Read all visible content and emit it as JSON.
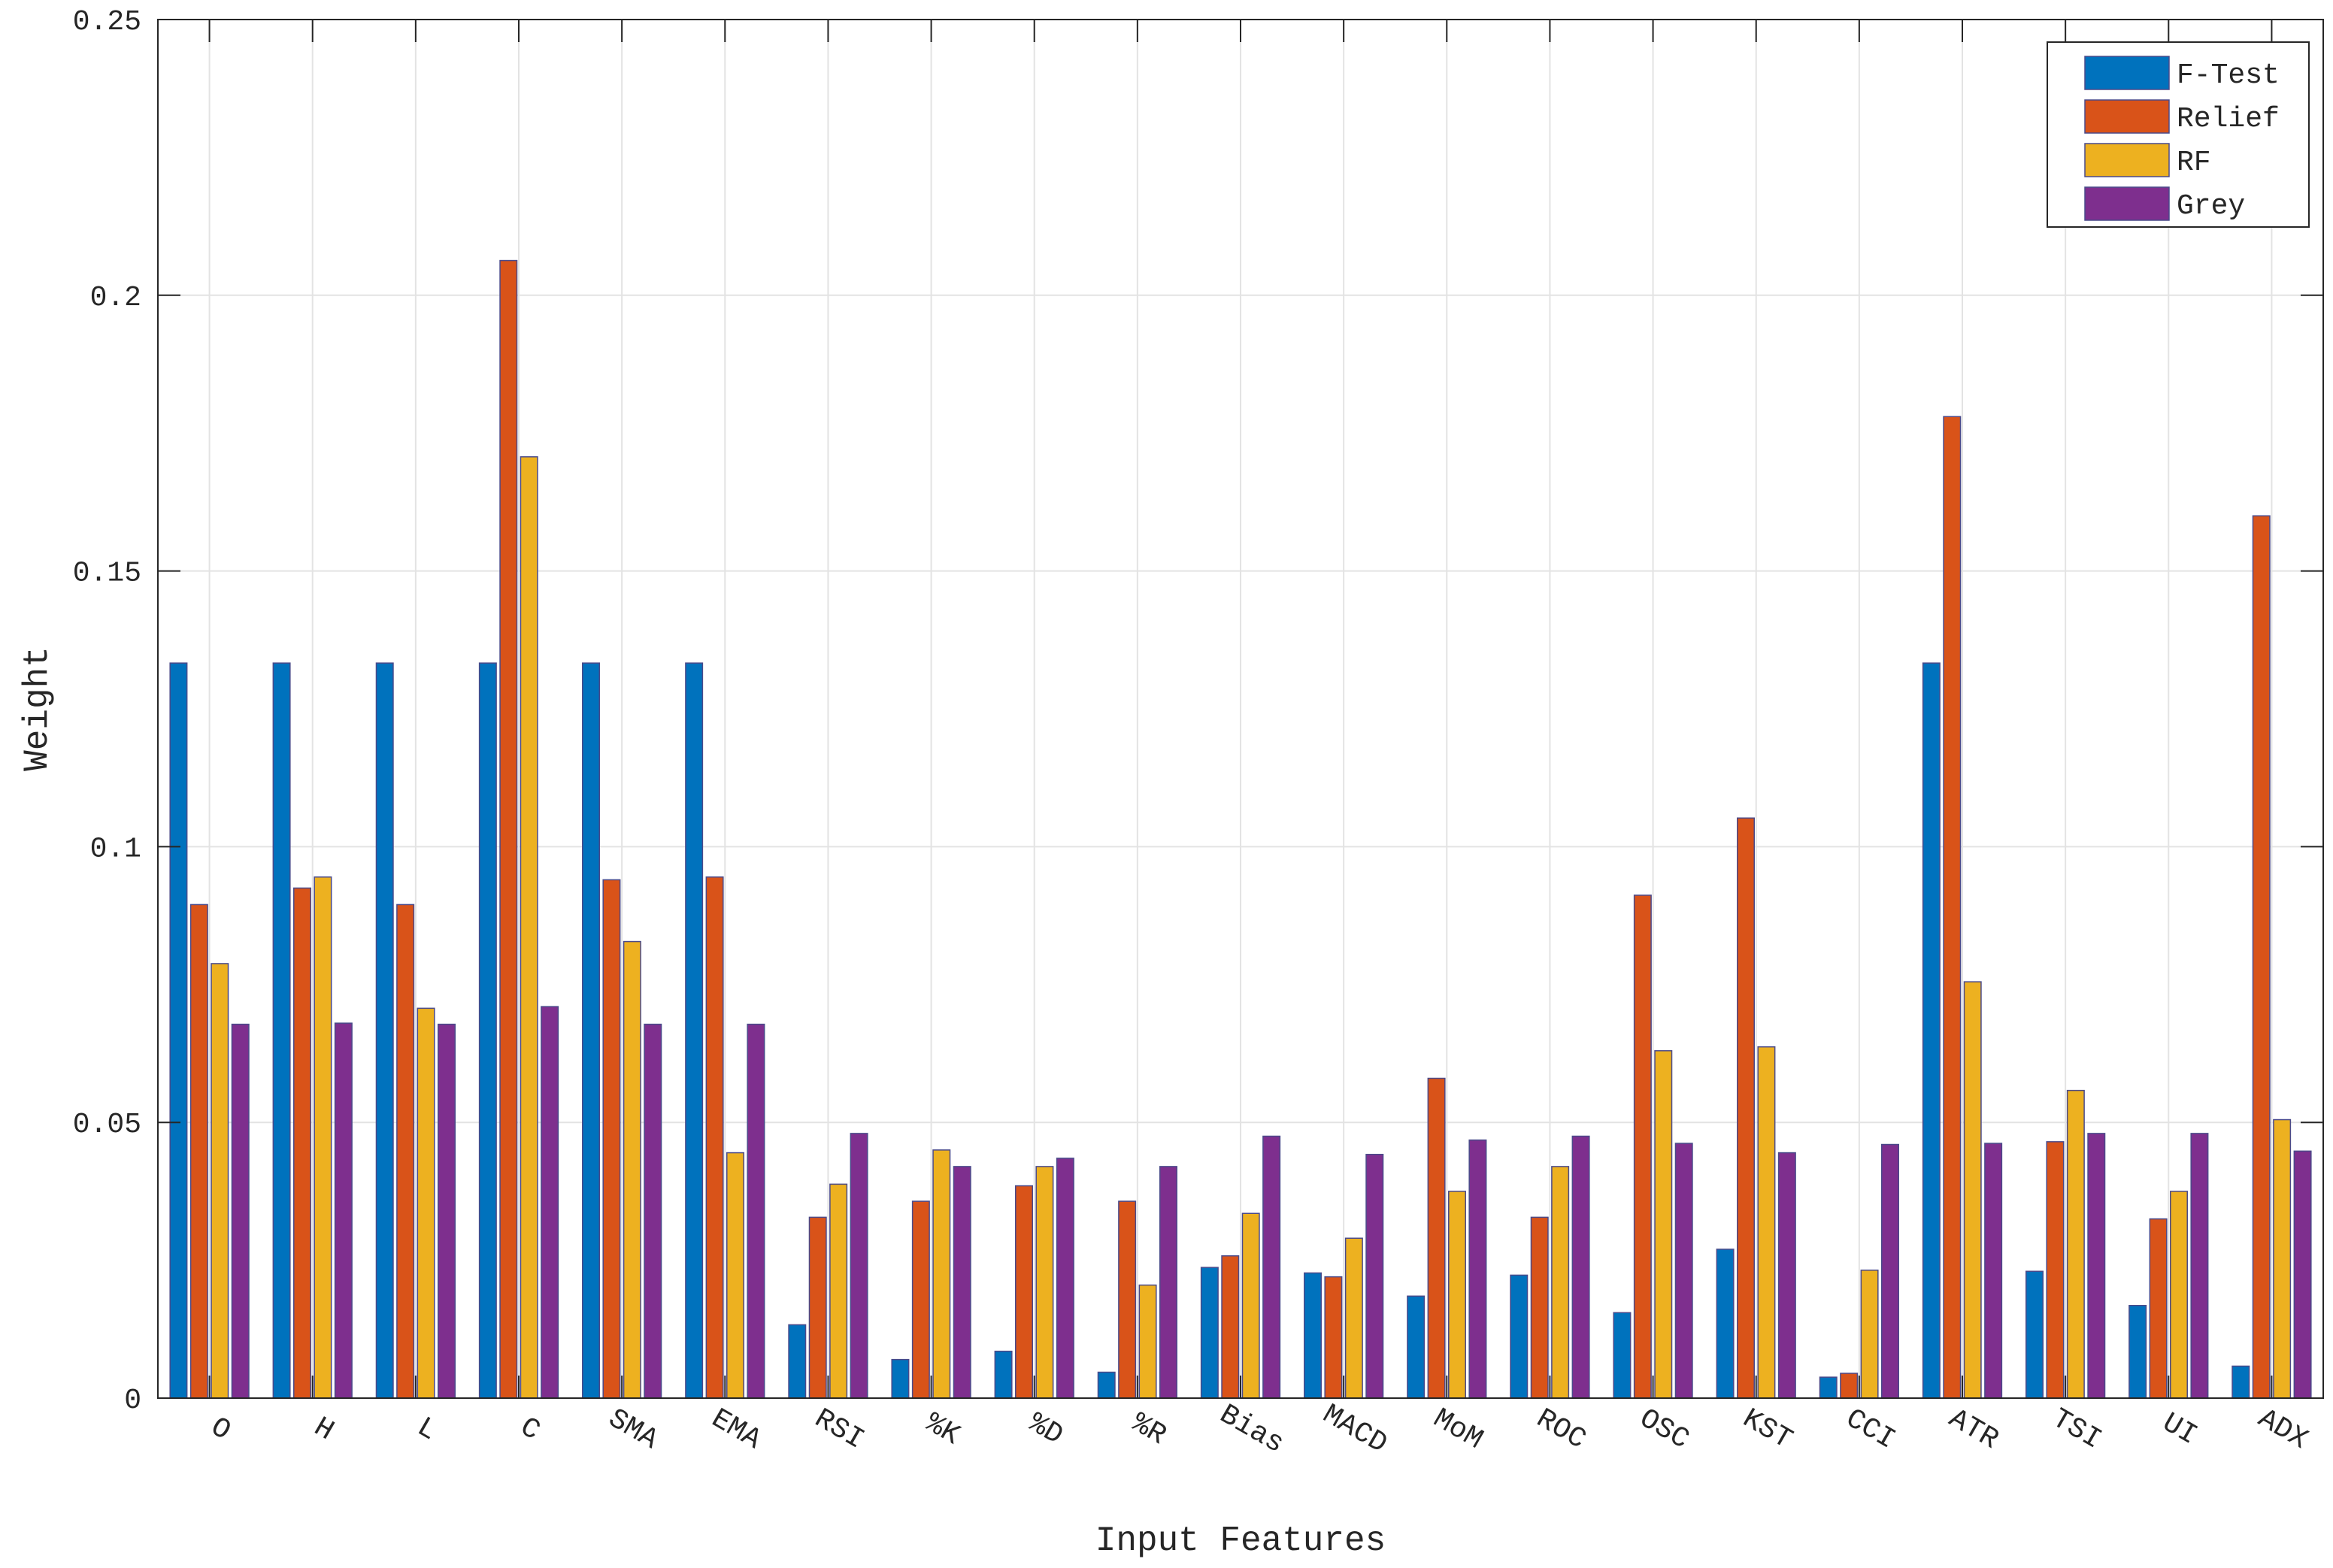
{
  "chart_data": {
    "type": "bar",
    "xlabel": "Input Features",
    "ylabel": "Weight",
    "ylim": [
      0,
      0.25
    ],
    "yticks": [
      0,
      0.05,
      0.1,
      0.15,
      0.2,
      0.25
    ],
    "ytick_labels": [
      "0",
      "0.05",
      "0.1",
      "0.15",
      "0.2",
      "0.25"
    ],
    "grid": true,
    "legend_position": "top-right",
    "categories": [
      "O",
      "H",
      "L",
      "C",
      "SMA",
      "EMA",
      "RSI",
      "%K",
      "%D",
      "%R",
      "Bias",
      "MACD",
      "MoM",
      "ROC",
      "OSC",
      "KST",
      "CCI",
      "ATR",
      "TSI",
      "UI",
      "ADX"
    ],
    "series": [
      {
        "name": "F-Test",
        "color": "#0072BD",
        "values": [
          0.1333,
          0.1333,
          0.1333,
          0.1333,
          0.1333,
          0.1333,
          0.0133,
          0.007,
          0.0085,
          0.0047,
          0.0237,
          0.0227,
          0.0185,
          0.0223,
          0.0155,
          0.027,
          0.0038,
          0.1333,
          0.023,
          0.0168,
          0.0058
        ]
      },
      {
        "name": "Relief",
        "color": "#D95319",
        "values": [
          0.0895,
          0.0925,
          0.0895,
          0.2063,
          0.094,
          0.0945,
          0.0328,
          0.0357,
          0.0385,
          0.0357,
          0.0258,
          0.022,
          0.058,
          0.0328,
          0.0912,
          0.1052,
          0.0045,
          0.178,
          0.0465,
          0.0325,
          0.16
        ]
      },
      {
        "name": "RF",
        "color": "#EDB120",
        "values": [
          0.0788,
          0.0945,
          0.0707,
          0.1707,
          0.0828,
          0.0445,
          0.0388,
          0.045,
          0.042,
          0.0205,
          0.0335,
          0.029,
          0.0375,
          0.042,
          0.063,
          0.0637,
          0.0232,
          0.0755,
          0.0558,
          0.0375,
          0.0505
        ]
      },
      {
        "name": "Grey",
        "color": "#7E2F8E",
        "values": [
          0.0678,
          0.068,
          0.0678,
          0.071,
          0.0678,
          0.0678,
          0.048,
          0.042,
          0.0435,
          0.042,
          0.0475,
          0.0442,
          0.0468,
          0.0475,
          0.0462,
          0.0445,
          0.046,
          0.0462,
          0.048,
          0.048,
          0.0448
        ]
      }
    ]
  }
}
